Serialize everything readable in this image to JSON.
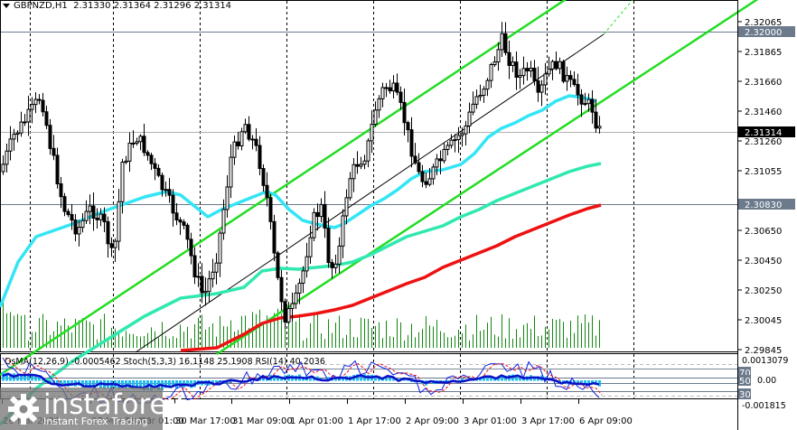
{
  "header": {
    "symbol": "GBPNZD,H1",
    "ohlc": "2.31330 2.31364 2.31296 2.31314"
  },
  "indicator_label": "OsMA(12,26,9) -0.0005462  Stoch(5,3,3) 16.1148 25.1908  RSI(14) 40.2036",
  "logo": {
    "brand": "instaforex",
    "tagline": "Instant Forex Trading"
  },
  "colors": {
    "channel": "#22dd22",
    "ema_fast": "#33e5f5",
    "ema_mid": "#30e8b0",
    "ema_slow": "#ee1111",
    "volume": "#118811",
    "osma": "#22bbee",
    "rsi": "#0a10c8",
    "stoch_main": "#1020e0",
    "stoch_signal": "#ee1111",
    "level_line": "#6c7a8c",
    "current_price_bg": "#000000"
  },
  "chart_data": {
    "type": "candlestick",
    "title": "GBPNZD,H1",
    "price_axis": {
      "labels": [
        {
          "value": "2.32065",
          "y": 24
        },
        {
          "value": "2.31865",
          "y": 57
        },
        {
          "value": "2.31660",
          "y": 90
        },
        {
          "value": "2.31460",
          "y": 123
        },
        {
          "value": "2.31260",
          "y": 156
        },
        {
          "value": "2.31055",
          "y": 189
        },
        {
          "value": "2.30650",
          "y": 255
        },
        {
          "value": "2.30450",
          "y": 288
        },
        {
          "value": "2.30250",
          "y": 321
        },
        {
          "value": "2.30045",
          "y": 354
        },
        {
          "value": "2.29845",
          "y": 387
        }
      ],
      "range": [
        2.29845,
        2.322
      ]
    },
    "horizontal_levels": [
      {
        "value": "2.32000",
        "y": 35,
        "style": "level"
      },
      {
        "value": "2.30830",
        "y": 226,
        "style": "level"
      },
      {
        "value": "2.31314",
        "y": 146,
        "style": "current"
      }
    ],
    "time_axis": [
      {
        "label": "26 Mar 2026",
        "x": 2
      },
      {
        "label": "27 Mar 09:00",
        "x": 100
      },
      {
        "label": "30 Mar 01:00",
        "x": 136
      },
      {
        "label": "30 Mar 17:00",
        "x": 193
      },
      {
        "label": "31 Mar 09:00",
        "x": 256
      },
      {
        "label": "1 Apr 01:00",
        "x": 320
      },
      {
        "label": "1 Apr 17:00",
        "x": 384
      },
      {
        "label": "2 Apr 09:00",
        "x": 448
      },
      {
        "label": "3 Apr 01:00",
        "x": 512
      },
      {
        "label": "3 Apr 17:00",
        "x": 576
      },
      {
        "label": "6 Apr 09:00",
        "x": 640
      }
    ],
    "vertical_dividers_x": [
      33,
      125,
      221,
      317,
      413,
      509,
      605,
      701
    ],
    "series": [
      {
        "name": "EMA fast (cyan)",
        "points": [
          [
            0,
            340
          ],
          [
            20,
            290
          ],
          [
            40,
            262
          ],
          [
            60,
            255
          ],
          [
            80,
            248
          ],
          [
            100,
            240
          ],
          [
            120,
            232
          ],
          [
            140,
            225
          ],
          [
            160,
            218
          ],
          [
            185,
            212
          ],
          [
            200,
            216
          ],
          [
            215,
            228
          ],
          [
            230,
            240
          ],
          [
            245,
            232
          ],
          [
            270,
            222
          ],
          [
            295,
            212
          ],
          [
            305,
            216
          ],
          [
            320,
            232
          ],
          [
            335,
            244
          ],
          [
            350,
            248
          ],
          [
            370,
            252
          ],
          [
            380,
            248
          ],
          [
            395,
            238
          ],
          [
            410,
            228
          ],
          [
            425,
            220
          ],
          [
            440,
            210
          ],
          [
            455,
            198
          ],
          [
            470,
            190
          ],
          [
            490,
            188
          ],
          [
            510,
            182
          ],
          [
            525,
            170
          ],
          [
            540,
            152
          ],
          [
            555,
            142
          ],
          [
            570,
            136
          ],
          [
            585,
            128
          ],
          [
            600,
            122
          ],
          [
            615,
            112
          ],
          [
            630,
            106
          ],
          [
            645,
            108
          ],
          [
            660,
            112
          ]
        ]
      },
      {
        "name": "EMA mid (aquamarine)",
        "points": [
          [
            0,
            470
          ],
          [
            40,
            430
          ],
          [
            80,
            400
          ],
          [
            120,
            375
          ],
          [
            160,
            350
          ],
          [
            200,
            330
          ],
          [
            240,
            325
          ],
          [
            270,
            318
          ],
          [
            290,
            300
          ],
          [
            310,
            297
          ],
          [
            330,
            298
          ],
          [
            350,
            296
          ],
          [
            370,
            294
          ],
          [
            390,
            290
          ],
          [
            410,
            282
          ],
          [
            430,
            272
          ],
          [
            450,
            262
          ],
          [
            470,
            256
          ],
          [
            490,
            250
          ],
          [
            510,
            240
          ],
          [
            530,
            232
          ],
          [
            550,
            222
          ],
          [
            570,
            214
          ],
          [
            590,
            206
          ],
          [
            610,
            198
          ],
          [
            630,
            190
          ],
          [
            650,
            184
          ],
          [
            665,
            181
          ]
        ]
      },
      {
        "name": "EMA slow (red)",
        "points": [
          [
            200,
            388
          ],
          [
            240,
            385
          ],
          [
            270,
            370
          ],
          [
            290,
            358
          ],
          [
            310,
            352
          ],
          [
            330,
            350
          ],
          [
            350,
            347
          ],
          [
            370,
            343
          ],
          [
            390,
            338
          ],
          [
            410,
            330
          ],
          [
            430,
            322
          ],
          [
            450,
            314
          ],
          [
            470,
            307
          ],
          [
            490,
            296
          ],
          [
            510,
            288
          ],
          [
            530,
            280
          ],
          [
            550,
            272
          ],
          [
            570,
            262
          ],
          [
            590,
            254
          ],
          [
            610,
            246
          ],
          [
            630,
            238
          ],
          [
            650,
            231
          ],
          [
            665,
            227
          ]
        ]
      }
    ],
    "channel": {
      "upper": [
        [
          0,
          415
        ],
        [
          640,
          -10
        ]
      ],
      "middle": [
        [
          150,
          390
        ],
        [
          700,
          0
        ]
      ],
      "lower": [
        [
          240,
          392
        ],
        [
          840,
          -2
        ]
      ],
      "middle_style": "thin black/green dashed"
    },
    "volume_bars_max_y": 385,
    "oscillator_panel": {
      "levels": [
        "70",
        "50",
        "30"
      ],
      "axis": {
        "top": "0.0013079",
        "mid": "0.00",
        "bottom": "-0.001815"
      },
      "osma": -0.0005462,
      "stoch_main": 16.1148,
      "stoch_signal": 25.1908,
      "rsi": 40.2036
    }
  }
}
